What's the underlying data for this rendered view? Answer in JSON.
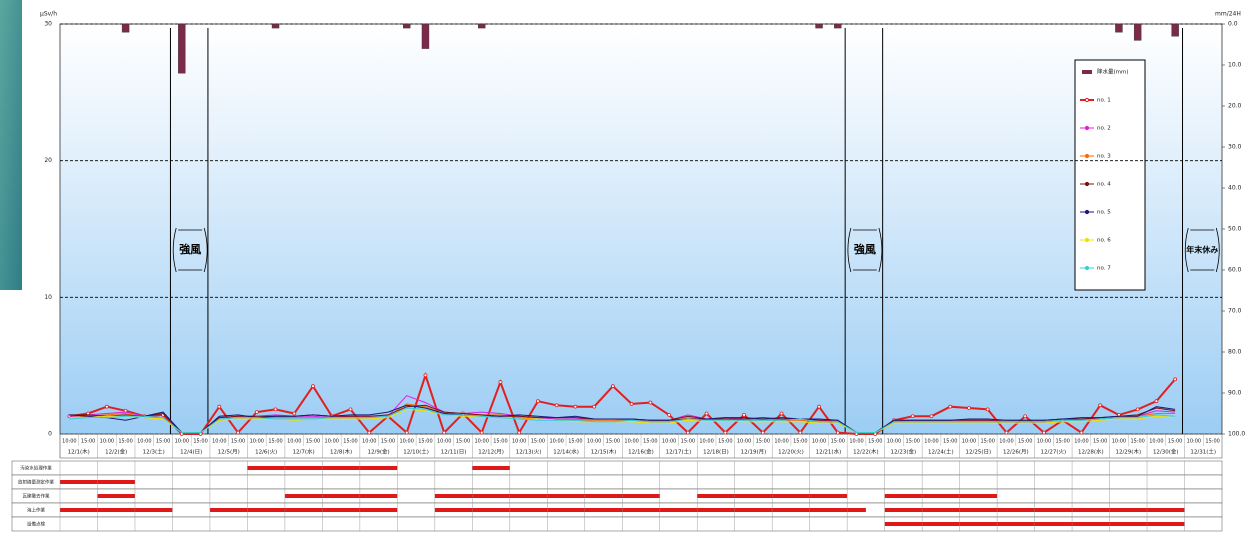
{
  "chart_data": {
    "type": "line",
    "y_label": "μSv/h",
    "y2_label": "mm/24H",
    "ylim": [
      0,
      30
    ],
    "yticks": [
      0,
      10,
      20,
      30
    ],
    "grid": true,
    "y2lim": [
      0,
      100
    ],
    "y2_inverted": true,
    "y2ticks": [
      {
        "value": 0,
        "label": "0.0"
      },
      {
        "value": 10,
        "label": "10.0"
      },
      {
        "value": 20,
        "label": "20.0"
      },
      {
        "value": 30,
        "label": "30.0"
      },
      {
        "value": 40,
        "label": "40.0"
      },
      {
        "value": 50,
        "label": "50.0"
      },
      {
        "value": 60,
        "label": "60.0"
      },
      {
        "value": 70,
        "label": "70.0"
      },
      {
        "value": 80,
        "label": "80.0"
      },
      {
        "value": 90,
        "label": "90.0"
      },
      {
        "value": 100,
        "label": "100.0"
      }
    ],
    "categories": [
      "10:00",
      "15:00",
      "10:00",
      "15:00",
      "10:00",
      "15:00",
      "10:00",
      "15:00",
      "10:00",
      "15:00",
      "10:00",
      "15:00",
      "10:00",
      "15:00",
      "10:00",
      "15:00",
      "10:00",
      "15:00",
      "10:00",
      "15:00",
      "10:00",
      "15:00",
      "10:00",
      "15:00",
      "10:00",
      "15:00",
      "10:00",
      "15:00",
      "10:00",
      "15:00",
      "10:00",
      "15:00",
      "10:00",
      "15:00",
      "10:00",
      "15:00",
      "10:00",
      "15:00",
      "10:00",
      "15:00",
      "10:00",
      "15:00",
      "10:00",
      "15:00",
      "10:00",
      "15:00",
      "10:00",
      "15:00",
      "10:00",
      "15:00",
      "10:00",
      "15:00",
      "10:00",
      "15:00",
      "10:00",
      "15:00",
      "10:00",
      "15:00",
      "10:00",
      "15:00",
      "10:00",
      "15:00"
    ],
    "dates": [
      "12/1(木)",
      "12/2(金)",
      "12/3(土)",
      "12/4(日)",
      "12/5(月)",
      "12/6(火)",
      "12/7(水)",
      "12/8(木)",
      "12/9(金)",
      "12/10(土)",
      "12/11(日)",
      "12/12(月)",
      "12/13(火)",
      "12/14(水)",
      "12/15(木)",
      "12/16(金)",
      "12/17(土)",
      "12/18(日)",
      "12/19(月)",
      "12/20(火)",
      "12/21(水)",
      "12/22(木)",
      "12/23(金)",
      "12/24(土)",
      "12/25(日)",
      "12/26(月)",
      "12/27(火)",
      "12/28(水)",
      "12/29(木)",
      "12/30(金)",
      "12/31(土)"
    ],
    "series": [
      {
        "name": "降水量(mm)",
        "type": "bar",
        "axis": "y2",
        "color": "#7b2a4a",
        "values": [
          0,
          0,
          0,
          2,
          0,
          0,
          12,
          0,
          0,
          0,
          0,
          1,
          0,
          0,
          0,
          0,
          0,
          0,
          1,
          6,
          0,
          0,
          1,
          0,
          0,
          0,
          0,
          0,
          0,
          0,
          0,
          0,
          0,
          0,
          0,
          0,
          0,
          0,
          0,
          0,
          1,
          1,
          0,
          0,
          0,
          0,
          0,
          0,
          0,
          0,
          0,
          0,
          0,
          0,
          0,
          0,
          2,
          4,
          0,
          3,
          0,
          0
        ]
      },
      {
        "name": "no. 1",
        "color": "#e02020",
        "marker": true,
        "values": [
          1.3,
          1.5,
          2.0,
          1.7,
          1.3,
          1.4,
          0.0,
          0.0,
          2.0,
          0.1,
          1.6,
          1.8,
          1.5,
          3.5,
          1.3,
          1.8,
          0.1,
          1.3,
          0.1,
          4.3,
          0.1,
          1.5,
          0.1,
          3.8,
          0.1,
          2.4,
          2.1,
          2.0,
          2.0,
          3.5,
          2.2,
          2.3,
          1.4,
          0.1,
          1.5,
          0.1,
          1.4,
          0.1,
          1.5,
          0.1,
          2.0,
          0.1,
          0.0,
          0.0,
          1.0,
          1.3,
          1.3,
          2.0,
          1.9,
          1.8,
          0.1,
          1.3,
          0.1,
          1.0,
          0.1,
          2.1,
          1.4,
          1.8,
          2.4,
          4.0,
          null,
          null
        ]
      },
      {
        "name": "no. 2",
        "color": "#e020e0",
        "values": [
          1.3,
          1.4,
          1.5,
          1.6,
          1.3,
          1.2,
          0.1,
          0.1,
          1.2,
          1.3,
          1.3,
          1.4,
          1.3,
          1.3,
          1.2,
          1.3,
          1.3,
          1.3,
          2.8,
          2.3,
          1.6,
          1.5,
          1.6,
          1.5,
          1.3,
          1.2,
          1.1,
          1.1,
          1.1,
          1.1,
          1.0,
          1.0,
          1.0,
          1.4,
          1.1,
          1.2,
          1.1,
          1.1,
          1.1,
          1.1,
          1.0,
          0.9,
          0.1,
          0.1,
          0.9,
          1.0,
          1.0,
          1.0,
          1.0,
          1.0,
          0.9,
          0.9,
          0.9,
          1.0,
          1.1,
          1.1,
          1.2,
          1.3,
          1.7,
          1.6,
          null,
          null
        ]
      },
      {
        "name": "no. 3",
        "color": "#ff6a00",
        "values": [
          1.2,
          1.3,
          1.4,
          1.5,
          1.2,
          1.2,
          0.1,
          0.1,
          1.1,
          1.2,
          1.2,
          1.2,
          1.2,
          1.2,
          1.2,
          1.2,
          1.2,
          1.3,
          2.2,
          2.0,
          1.5,
          1.4,
          1.4,
          1.4,
          1.2,
          1.1,
          1.0,
          1.0,
          1.0,
          1.0,
          1.0,
          0.9,
          0.9,
          1.2,
          1.0,
          1.1,
          1.0,
          1.0,
          1.0,
          1.0,
          0.9,
          0.9,
          0.1,
          0.1,
          0.9,
          0.9,
          0.9,
          0.9,
          0.9,
          0.9,
          0.9,
          0.9,
          0.9,
          1.0,
          1.0,
          1.1,
          1.2,
          1.3,
          1.5,
          1.5,
          null,
          null
        ]
      },
      {
        "name": "no. 4",
        "color": "#7a1010",
        "values": [
          1.4,
          1.4,
          1.3,
          1.4,
          1.3,
          1.5,
          0.1,
          0.1,
          1.2,
          1.3,
          1.3,
          1.3,
          1.3,
          1.4,
          1.3,
          1.3,
          1.3,
          1.4,
          2.0,
          2.1,
          1.6,
          1.5,
          1.4,
          1.3,
          1.3,
          1.2,
          1.2,
          1.2,
          1.1,
          1.1,
          1.1,
          1.0,
          1.0,
          1.3,
          1.1,
          1.1,
          1.1,
          1.2,
          1.1,
          1.1,
          1.0,
          1.0,
          0.1,
          0.1,
          1.0,
          1.0,
          1.0,
          1.0,
          1.0,
          1.0,
          1.0,
          1.0,
          1.0,
          1.1,
          1.1,
          1.2,
          1.3,
          1.4,
          1.9,
          1.7,
          null,
          null
        ]
      },
      {
        "name": "no. 5",
        "color": "#1a1a7a",
        "values": [
          1.4,
          1.3,
          1.2,
          1.0,
          1.3,
          1.6,
          0.1,
          0.1,
          1.3,
          1.4,
          1.2,
          1.3,
          1.3,
          1.4,
          1.3,
          1.4,
          1.4,
          1.6,
          2.1,
          1.9,
          1.5,
          1.4,
          1.3,
          1.3,
          1.4,
          1.3,
          1.2,
          1.3,
          1.1,
          1.1,
          1.1,
          1.0,
          1.0,
          1.1,
          1.1,
          1.2,
          1.2,
          1.1,
          1.2,
          1.1,
          1.1,
          1.0,
          0.1,
          0.1,
          1.0,
          1.0,
          1.0,
          1.0,
          1.1,
          1.1,
          1.0,
          1.0,
          1.0,
          1.1,
          1.2,
          1.2,
          1.3,
          1.3,
          2.0,
          1.8,
          null,
          null
        ]
      },
      {
        "name": "no. 6",
        "color": "#f0e000",
        "values": [
          1.2,
          1.2,
          1.3,
          1.3,
          1.2,
          1.1,
          0.1,
          0.1,
          1.0,
          1.1,
          1.1,
          1.1,
          1.0,
          1.1,
          1.1,
          1.1,
          1.1,
          1.2,
          1.8,
          1.7,
          1.4,
          1.3,
          1.3,
          1.2,
          1.1,
          1.1,
          1.0,
          0.9,
          0.9,
          0.9,
          0.9,
          0.8,
          0.8,
          1.0,
          0.9,
          1.0,
          0.9,
          0.9,
          0.9,
          0.9,
          0.8,
          0.8,
          0.1,
          0.1,
          0.8,
          0.8,
          0.8,
          0.8,
          0.8,
          0.8,
          0.8,
          0.8,
          0.8,
          0.9,
          0.9,
          1.0,
          1.1,
          1.1,
          1.3,
          1.2,
          null,
          null
        ]
      },
      {
        "name": "no. 7",
        "color": "#30d0e0",
        "values": [
          1.1,
          1.2,
          1.2,
          1.3,
          1.3,
          1.2,
          0.1,
          0.1,
          1.1,
          1.2,
          1.2,
          1.1,
          1.1,
          1.1,
          1.2,
          1.2,
          1.2,
          1.3,
          1.9,
          1.8,
          1.4,
          1.4,
          1.3,
          1.2,
          1.1,
          1.0,
          1.0,
          1.0,
          0.9,
          0.9,
          1.0,
          0.9,
          0.9,
          1.1,
          1.0,
          1.0,
          1.0,
          1.0,
          1.0,
          1.1,
          0.9,
          0.9,
          0.1,
          0.1,
          0.9,
          0.9,
          0.9,
          0.9,
          0.9,
          0.9,
          0.9,
          0.9,
          0.9,
          1.0,
          1.0,
          1.1,
          1.2,
          1.2,
          1.4,
          1.3,
          null,
          null
        ]
      }
    ],
    "annotations": [
      "強風",
      "強風",
      "年末休み"
    ],
    "schedule": [
      {
        "label": "汚染水処理作業",
        "periods": [
          [
            10,
            18
          ],
          [
            22,
            24
          ]
        ]
      },
      {
        "label": "放射線量測定作業",
        "periods": [
          [
            0,
            4
          ]
        ]
      },
      {
        "label": "瓦礫撤去作業",
        "periods": [
          [
            2,
            4
          ],
          [
            12,
            18
          ],
          [
            20,
            32
          ],
          [
            34,
            42
          ],
          [
            44,
            50
          ]
        ]
      },
      {
        "label": "海上作業",
        "periods": [
          [
            0,
            6
          ],
          [
            8,
            18
          ],
          [
            20,
            43
          ],
          [
            44,
            60
          ]
        ]
      },
      {
        "label": "設備点検",
        "periods": [
          [
            44,
            60
          ]
        ]
      }
    ]
  }
}
